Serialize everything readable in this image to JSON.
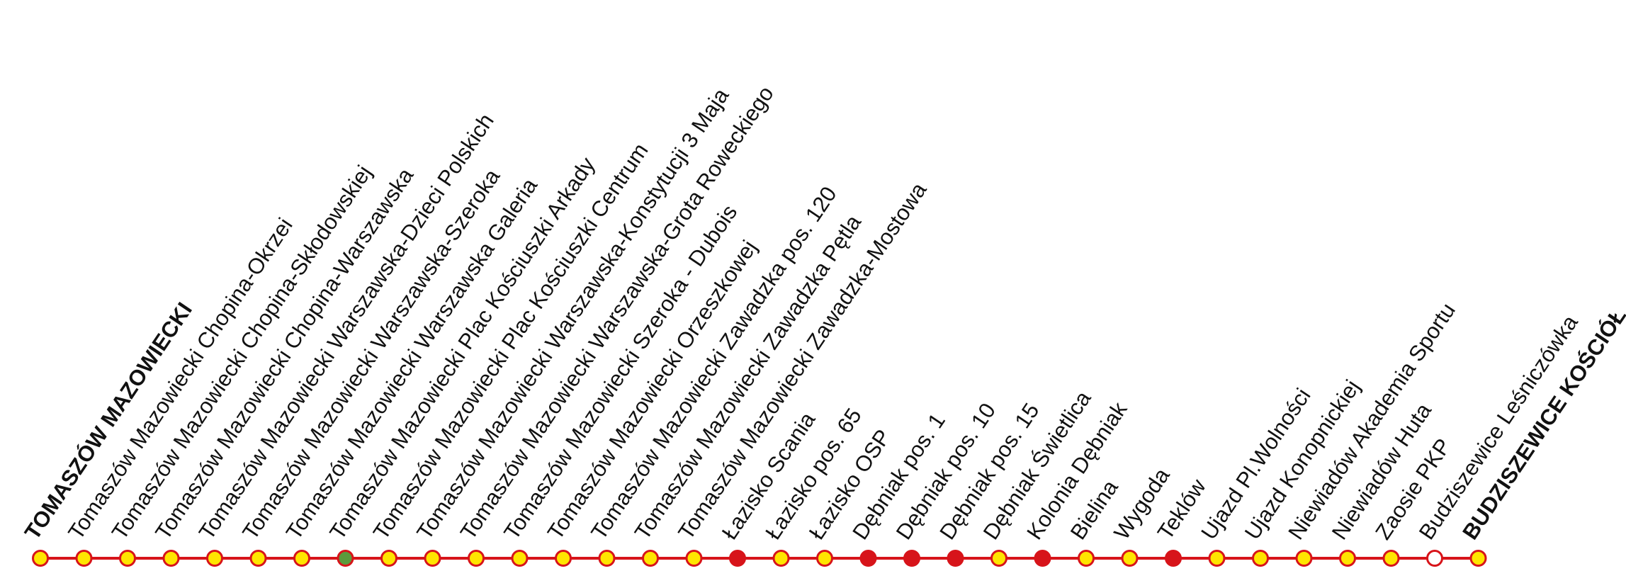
{
  "line_color": "#d7141a",
  "stops": [
    {
      "name": "TOMASZÓW MAZOWIECKI",
      "color": "#ffe500"
    },
    {
      "name": "Tomaszów Mazowiecki Chopina-Okrzei",
      "color": "#ffe500"
    },
    {
      "name": "Tomaszów Mazowiecki Chopina-Skłodowskiej",
      "color": "#ffe500"
    },
    {
      "name": "Tomaszów Mazowiecki Chopina-Warszawska",
      "color": "#ffe500"
    },
    {
      "name": "Tomaszów Mazowiecki Warszawska-Dzieci Polskich",
      "color": "#ffe500"
    },
    {
      "name": "Tomaszów Mazowiecki Warszawska-Szeroka",
      "color": "#ffe500"
    },
    {
      "name": "Tomaszów Mazowiecki Warszawska Galeria",
      "color": "#ffe500"
    },
    {
      "name": "Tomaszów Mazowiecki Plac Kościuszki Arkady",
      "color": "#5b9b3c"
    },
    {
      "name": "Tomaszów Mazowiecki Plac Kościuszki Centrum",
      "color": "#ffe500"
    },
    {
      "name": "Tomaszów Mazowiecki Warszawska-Konstytucji 3 Maja",
      "color": "#ffe500"
    },
    {
      "name": "Tomaszów Mazowiecki Warszawska-Grota Roweckiego",
      "color": "#ffe500"
    },
    {
      "name": "Tomaszów Mazowiecki Szeroka - Dubois",
      "color": "#ffe500"
    },
    {
      "name": "Tomaszów Mazowiecki Orzeszkowej",
      "color": "#ffe500"
    },
    {
      "name": "Tomaszów Mazowiecki Zawadzka pos. 120",
      "color": "#ffe500"
    },
    {
      "name": "Tomaszów Mazowiecki Zawadzka Pętla",
      "color": "#ffe500"
    },
    {
      "name": "Tomaszów Mazowiecki Zawadzka-Mostowa",
      "color": "#ffe500"
    },
    {
      "name": "Łazisko Scania",
      "color": "#d7141a"
    },
    {
      "name": "Łazisko pos. 65",
      "color": "#ffe500"
    },
    {
      "name": "Łazisko OSP",
      "color": "#ffe500"
    },
    {
      "name": "Dębniak pos. 1",
      "color": "#d7141a"
    },
    {
      "name": "Dębniak pos. 10",
      "color": "#d7141a"
    },
    {
      "name": "Dębniak pos. 15",
      "color": "#d7141a"
    },
    {
      "name": "Dębniak Świetlica",
      "color": "#ffe500"
    },
    {
      "name": "Kolonia Dębniak",
      "color": "#d7141a"
    },
    {
      "name": "Bielina",
      "color": "#ffe500"
    },
    {
      "name": "Wygoda",
      "color": "#ffe500"
    },
    {
      "name": "Teklów",
      "color": "#d7141a"
    },
    {
      "name": "Ujazd Pl.Wolności",
      "color": "#ffe500"
    },
    {
      "name": "Ujazd Konopnickiej",
      "color": "#ffe500"
    },
    {
      "name": "Niewiadów Akademia Sportu",
      "color": "#ffe500"
    },
    {
      "name": "Niewiadów Huta",
      "color": "#ffe500"
    },
    {
      "name": "Zaosie PKP",
      "color": "#ffe500"
    },
    {
      "name": "Budziszewice Leśniczówka",
      "color": "#ffffff"
    },
    {
      "name": "BUDZISZEWICE KOŚCIÓŁ",
      "color": "#ffe500"
    }
  ]
}
